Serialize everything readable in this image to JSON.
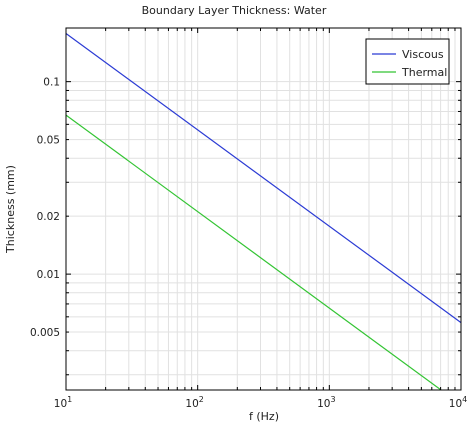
{
  "chart_data": {
    "type": "line",
    "title": "Boundary Layer Thickness: Water",
    "xlabel": "f (Hz)",
    "ylabel": "Thickness (mm)",
    "x_scale": "log",
    "y_scale": "log",
    "xlim": [
      10,
      10000
    ],
    "ylim": [
      0.0025,
      0.19
    ],
    "x_ticks": [
      {
        "value": 10,
        "base": "10",
        "exp": "1"
      },
      {
        "value": 100,
        "base": "10",
        "exp": "2"
      },
      {
        "value": 1000,
        "base": "10",
        "exp": "3"
      },
      {
        "value": 10000,
        "base": "10",
        "exp": "4"
      }
    ],
    "y_ticks": [
      {
        "value": 0.1,
        "label": "0.1"
      },
      {
        "value": 0.05,
        "label": "0.05"
      },
      {
        "value": 0.02,
        "label": "0.02"
      },
      {
        "value": 0.01,
        "label": "0.01"
      },
      {
        "value": 0.005,
        "label": "0.005"
      }
    ],
    "grid": true,
    "legend_position": "top-right",
    "series": [
      {
        "name": "Viscous",
        "color": "#2b3bd4",
        "x": [
          10,
          10000
        ],
        "y": [
          0.178,
          0.0056
        ]
      },
      {
        "name": "Thermal",
        "color": "#33c433",
        "x": [
          10,
          10000
        ],
        "y": [
          0.067,
          0.0021
        ]
      }
    ]
  }
}
